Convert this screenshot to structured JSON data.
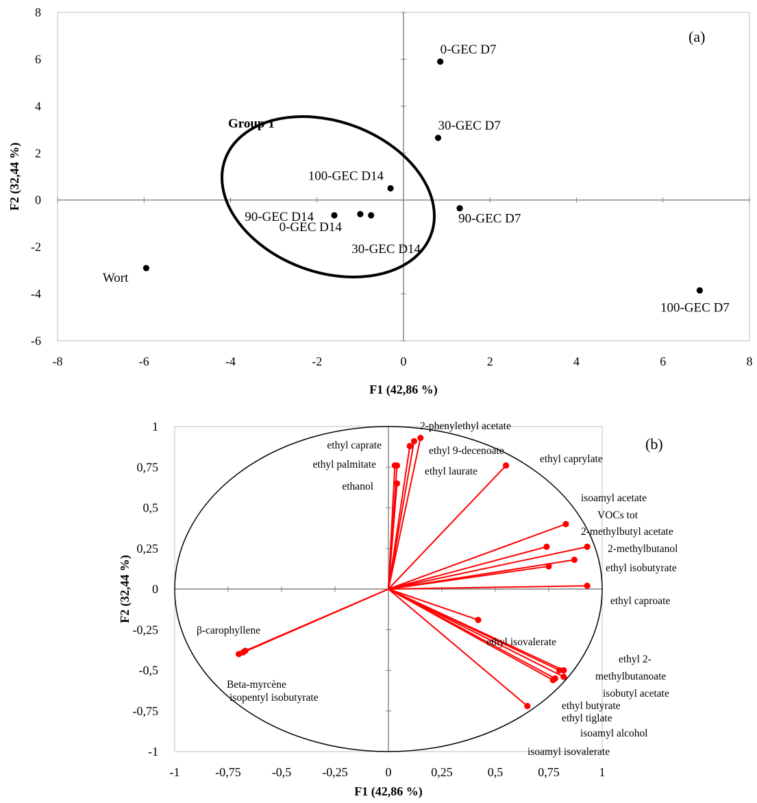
{
  "chart_data": [
    {
      "type": "scatter",
      "panel_label": "(a)",
      "xlabel": "F1 (42,86 %)",
      "ylabel": "F2 (32,44 %)",
      "xlim": [
        -8,
        8
      ],
      "ylim": [
        -6,
        8
      ],
      "xticks": [
        "-8",
        "-6",
        "-4",
        "-2",
        "0",
        "2",
        "4",
        "6",
        "8"
      ],
      "yticks": [
        "-6",
        "-4",
        "-2",
        "0",
        "2",
        "4",
        "6",
        "8"
      ],
      "points": [
        {
          "label": "0-GEC D7",
          "x": 0.85,
          "y": 5.9
        },
        {
          "label": "30-GEC D7",
          "x": 0.8,
          "y": 2.65
        },
        {
          "label": "100-GEC D14",
          "x": -0.3,
          "y": 0.5
        },
        {
          "label": "90-GEC D7",
          "x": 1.3,
          "y": -0.35
        },
        {
          "label": "90-GEC D14",
          "x": -1.6,
          "y": -0.65
        },
        {
          "label": "0-GEC D14",
          "x": -1.0,
          "y": -0.6
        },
        {
          "label": "30-GEC D14",
          "x": -0.75,
          "y": -0.65
        },
        {
          "label": "Wort",
          "x": -5.95,
          "y": -2.9
        },
        {
          "label": "100-GEC D7",
          "x": 6.85,
          "y": -3.85
        }
      ],
      "annotation": {
        "label": "Group 1"
      }
    },
    {
      "type": "scatter",
      "panel_label": "(b)",
      "xlabel": "F1 (42,86 %)",
      "ylabel": "F2 (32,44 %)",
      "xlim": [
        -1,
        1
      ],
      "ylim": [
        -1,
        1
      ],
      "xticks": [
        "-1",
        "-0,75",
        "-0,5",
        "-0,25",
        "0",
        "0,25",
        "0,5",
        "0,75",
        "1"
      ],
      "yticks": [
        "-1",
        "-0,75",
        "-0,5",
        "-0,25",
        "0",
        "0,25",
        "0,5",
        "0,75",
        "1"
      ],
      "series": [
        {
          "name": "2-phenylethyl acetate",
          "x": 0.15,
          "y": 0.93
        },
        {
          "name": "ethyl 9-decenoate",
          "x": 0.12,
          "y": 0.91
        },
        {
          "name": "ethyl laurate",
          "x": 0.1,
          "y": 0.88
        },
        {
          "name": "ethyl caprate",
          "x": 0.04,
          "y": 0.76
        },
        {
          "name": "ethyl palmitate",
          "x": 0.03,
          "y": 0.76
        },
        {
          "name": "ethanol",
          "x": 0.04,
          "y": 0.65
        },
        {
          "name": "ethyl caprylate",
          "x": 0.55,
          "y": 0.76
        },
        {
          "name": "isoamyl acetate",
          "x": 0.83,
          "y": 0.4
        },
        {
          "name": "VOCs tot",
          "x": 0.74,
          "y": 0.26
        },
        {
          "name": "2-methylbutyl acetate",
          "x": 0.93,
          "y": 0.26
        },
        {
          "name": "2-methylbutanol",
          "x": 0.87,
          "y": 0.18
        },
        {
          "name": "ethyl isobutyrate",
          "x": 0.75,
          "y": 0.14
        },
        {
          "name": "ethyl caproate",
          "x": 0.93,
          "y": 0.02
        },
        {
          "name": "ethyl isovalerate",
          "x": 0.42,
          "y": -0.19
        },
        {
          "name": "ethyl 2-methylbutanoate",
          "x": 0.82,
          "y": -0.5
        },
        {
          "name": "isobutyl acetate",
          "x": 0.8,
          "y": -0.5
        },
        {
          "name": "ethyl butyrate",
          "x": 0.82,
          "y": -0.54
        },
        {
          "name": "ethyl tiglate",
          "x": 0.78,
          "y": -0.55
        },
        {
          "name": "isoamyl alcohol",
          "x": 0.77,
          "y": -0.56
        },
        {
          "name": "isoamyl isovalerate",
          "x": 0.65,
          "y": -0.72
        },
        {
          "name": "β-carophyllene",
          "x": -0.68,
          "y": -0.39
        },
        {
          "name": "Beta-myrcène",
          "x": -0.67,
          "y": -0.38
        },
        {
          "name": "isopentyl isobutyrate",
          "x": -0.7,
          "y": -0.4
        }
      ]
    }
  ]
}
